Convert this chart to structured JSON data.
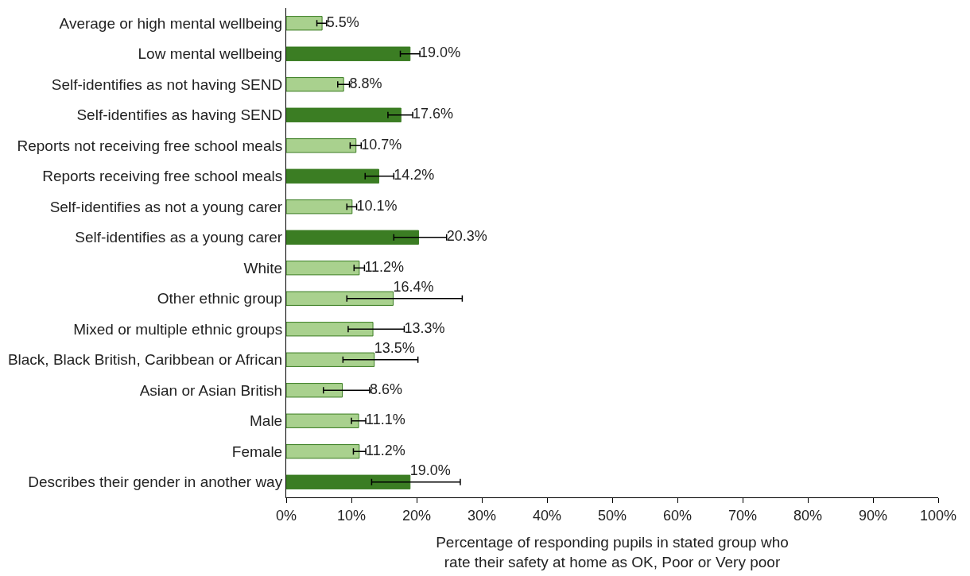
{
  "chart_data": {
    "type": "bar",
    "orientation": "horizontal",
    "xlabel": "Percentage of responding pupils in stated group who rate their safety at home as OK, Poor or Very poor",
    "categories": [
      "Average or high mental wellbeing",
      "Low mental wellbeing",
      "Self-identifies as not having SEND",
      "Self-identifies as having SEND",
      "Reports not receiving free school meals",
      "Reports receiving free school meals",
      "Self-identifies as not a young carer",
      "Self-identifies as a young carer",
      "White",
      "Other ethnic group",
      "Mixed or multiple ethnic groups",
      "Black, Black British, Caribbean or African",
      "Asian or Asian British",
      "Male",
      "Female",
      "Describes their gender in another way"
    ],
    "values": [
      5.5,
      19.0,
      8.8,
      17.6,
      10.7,
      14.2,
      10.1,
      20.3,
      11.2,
      16.4,
      13.3,
      13.5,
      8.6,
      11.1,
      11.2,
      19.0
    ],
    "value_labels": [
      "5.5%",
      "19.0%",
      "8.8%",
      "17.6%",
      "10.7%",
      "14.2%",
      "10.1%",
      "20.3%",
      "11.2%",
      "16.4%",
      "13.3%",
      "13.5%",
      "8.6%",
      "11.1%",
      "11.2%",
      "19.0%"
    ],
    "errors": [
      [
        4.7,
        6.2
      ],
      [
        17.5,
        20.5
      ],
      [
        7.9,
        9.7
      ],
      [
        15.6,
        19.4
      ],
      [
        9.8,
        11.5
      ],
      [
        12.1,
        16.5
      ],
      [
        9.3,
        10.8
      ],
      [
        16.5,
        24.6
      ],
      [
        10.4,
        12.0
      ],
      [
        9.3,
        27.0
      ],
      [
        9.5,
        18.1
      ],
      [
        8.7,
        20.2
      ],
      [
        5.7,
        12.8
      ],
      [
        10.0,
        12.2
      ],
      [
        10.3,
        12.2
      ],
      [
        13.1,
        26.7
      ]
    ],
    "colors": [
      "#a9d18e",
      "#3b7d23",
      "#a9d18e",
      "#3b7d23",
      "#a9d18e",
      "#3b7d23",
      "#a9d18e",
      "#3b7d23",
      "#a9d18e",
      "#a9d18e",
      "#a9d18e",
      "#a9d18e",
      "#a9d18e",
      "#a9d18e",
      "#a9d18e",
      "#3b7d23"
    ],
    "xlim": [
      0,
      100
    ],
    "xticks": [
      {
        "value": 0,
        "label": "0%"
      },
      {
        "value": 10,
        "label": "10%"
      },
      {
        "value": 20,
        "label": "20%"
      },
      {
        "value": 30,
        "label": "30%"
      },
      {
        "value": 40,
        "label": "40%"
      },
      {
        "value": 50,
        "label": "50%"
      },
      {
        "value": 60,
        "label": "60%"
      },
      {
        "value": 70,
        "label": "70%"
      },
      {
        "value": 80,
        "label": "80%"
      },
      {
        "value": 90,
        "label": "90%"
      },
      {
        "value": 100,
        "label": "100%"
      }
    ],
    "grid": false
  }
}
